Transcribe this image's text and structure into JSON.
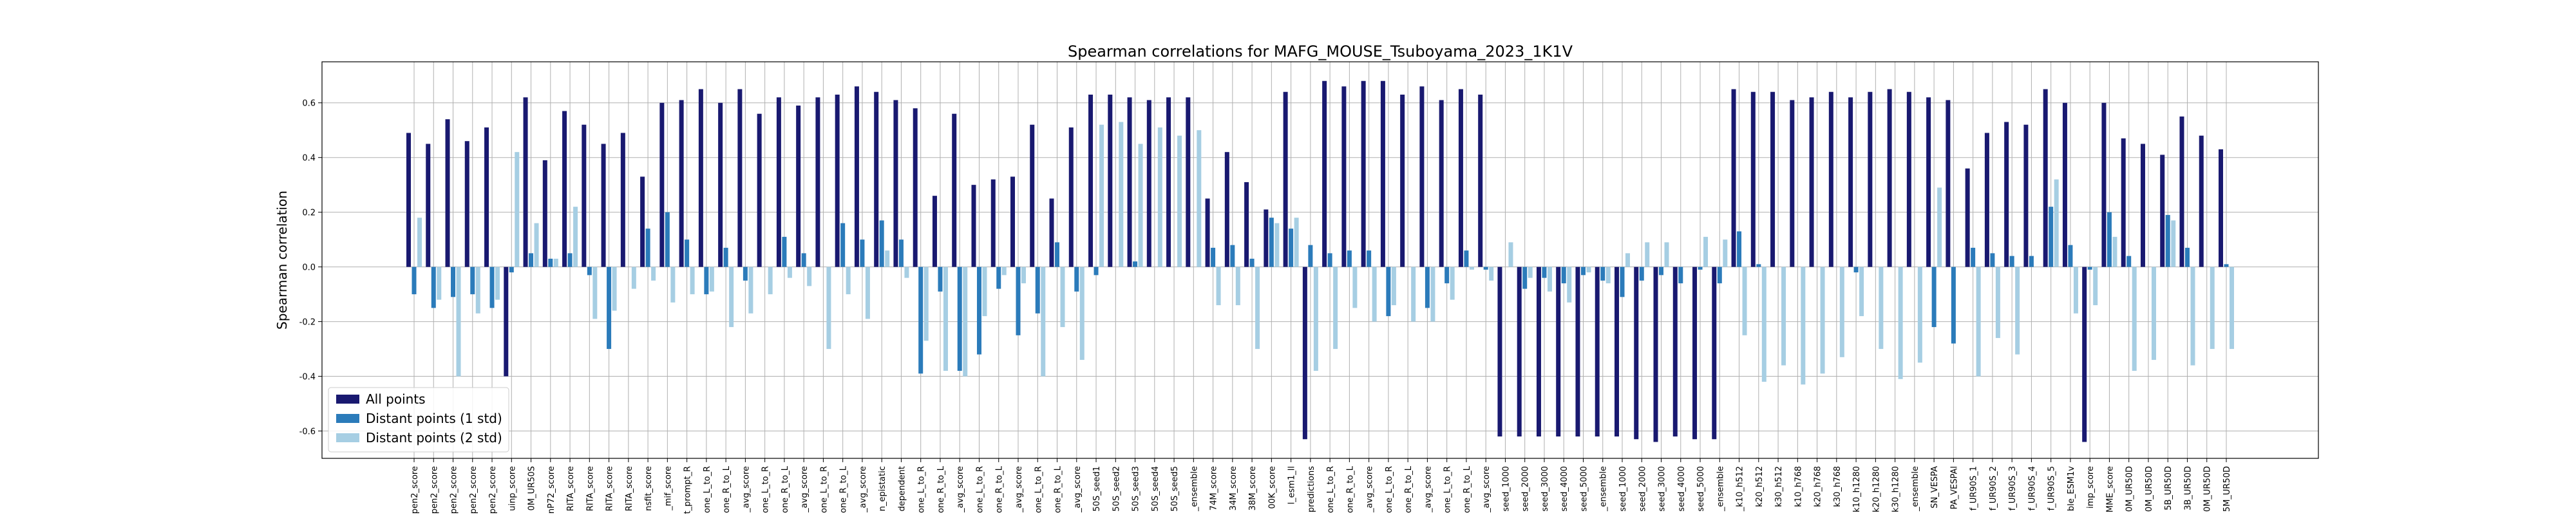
{
  "chart_data": {
    "type": "bar",
    "title": "Spearman correlations for MAFG_MOUSE_Tsuboyama_2023_1K1V",
    "ylabel": "Spearman correlation",
    "legend": "lower left",
    "grid": true,
    "ylim": [
      -0.7,
      0.75
    ],
    "yticks": [
      -0.6,
      -0.4,
      -0.2,
      {
        "value": 0,
        "label": "0.0"
      },
      0.2,
      0.4,
      0.6
    ],
    "categories": [
      "pen2_score",
      "pen2_score",
      "pen2_score",
      "pen2_score",
      "pen2_score",
      "uinp_score",
      "0M_UR50S",
      "nP72_score",
      "RITA_score",
      "RITA_score",
      "RITA_score",
      "RITA_score",
      "nsfit_score",
      "_mif_score",
      "t_prompt_R",
      "one_L_to_R",
      "one_R_to_L",
      "_avg_score",
      "one_L_to_R",
      "one_R_to_L",
      "_avg_score",
      "one_L_to_R",
      "one_R_to_L",
      "_avg_score",
      "n_epistatic",
      "dependent",
      "one_L_to_R",
      "one_R_to_L",
      "_avg_score",
      "one_L_to_R",
      "one_R_to_L",
      "_avg_score",
      "one_L_to_R",
      "one_R_to_L",
      "_avg_score",
      "50S_seed1",
      "50S_seed2",
      "50S_seed3",
      "50S_seed4",
      "50S_seed5",
      "_ensemble",
      "74M_score",
      "34M_score",
      "38M_score",
      "00K_score",
      "l_esm1_ll",
      "predictions",
      "one_L_to_R",
      "one_R_to_L",
      "_avg_score",
      "one_L_to_R",
      "one_R_to_L",
      "_avg_score",
      "one_L_to_R",
      "one_R_to_L",
      "_avg_score",
      "seed_1000",
      "seed_2000",
      "seed_3000",
      "seed_4000",
      "seed_5000",
      "_ensemble",
      "seed_1000",
      "seed_2000",
      "seed_3000",
      "seed_4000",
      "seed_5000",
      "_ensemble",
      "_k10_h512",
      "k20_h512",
      "k30_h512",
      "k10_h768",
      "k20_h768",
      "k30_h768",
      "k10_h1280",
      "k20_h1280",
      "k30_h1280",
      "_ensemble",
      "SN_VESPA",
      "PA_VESPAl",
      "f_UR90S_1",
      "f_UR90S_2",
      "f_UR90S_3",
      "f_UR90S_4",
      "f_UR90S_5",
      "ble_ESM1v",
      "imp_score",
      "MME_score",
      "0M_UR50D",
      "0M_UR50D",
      "5B_UR50D",
      "3B_UR50D",
      "0M_UR50D",
      "5M_UR50D"
    ],
    "series": [
      {
        "name": "All points",
        "color": "#191970",
        "values": [
          0.49,
          0.45,
          0.54,
          0.46,
          0.51,
          -0.4,
          0.62,
          0.39,
          0.57,
          0.52,
          0.45,
          0.49,
          0.33,
          0.6,
          0.61,
          0.65,
          0.6,
          0.65,
          0.56,
          0.62,
          0.59,
          0.62,
          0.63,
          0.66,
          0.64,
          0.61,
          0.58,
          0.26,
          0.56,
          0.3,
          0.32,
          0.33,
          0.52,
          0.25,
          0.51,
          0.63,
          0.63,
          0.62,
          0.61,
          0.62,
          0.62,
          0.25,
          0.42,
          0.31,
          0.21,
          0.64,
          -0.63,
          0.68,
          0.66,
          0.68,
          0.68,
          0.63,
          0.66,
          0.61,
          0.65,
          0.63,
          -0.62,
          -0.62,
          -0.62,
          -0.62,
          -0.62,
          -0.62,
          -0.62,
          -0.63,
          -0.64,
          -0.62,
          -0.63,
          -0.63,
          0.65,
          0.64,
          0.64,
          0.61,
          0.62,
          0.64,
          0.62,
          0.64,
          0.65,
          0.64,
          0.62,
          0.61,
          0.36,
          0.49,
          0.53,
          0.52,
          0.65,
          0.6,
          -0.64,
          0.6,
          0.47,
          0.45,
          0.41,
          0.55,
          0.48,
          0.43
        ]
      },
      {
        "name": "Distant points (1 std)",
        "color": "#2b7bba",
        "values": [
          -0.1,
          -0.15,
          -0.11,
          -0.1,
          -0.15,
          -0.02,
          0.05,
          0.03,
          0.05,
          -0.03,
          -0.3,
          0.0,
          0.14,
          0.2,
          0.1,
          -0.1,
          0.07,
          -0.05,
          0.0,
          0.11,
          0.05,
          0.0,
          0.16,
          0.1,
          0.17,
          0.1,
          -0.39,
          -0.09,
          -0.38,
          -0.32,
          -0.08,
          -0.25,
          -0.17,
          0.09,
          -0.09,
          -0.03,
          0.0,
          0.02,
          0.0,
          0.0,
          0.0,
          0.07,
          0.08,
          0.03,
          0.18,
          0.14,
          0.08,
          0.05,
          0.06,
          0.06,
          -0.18,
          0.0,
          -0.15,
          -0.06,
          0.06,
          -0.01,
          0.0,
          -0.08,
          -0.04,
          -0.06,
          -0.03,
          -0.05,
          -0.11,
          -0.05,
          -0.03,
          -0.06,
          -0.01,
          -0.06,
          0.13,
          0.01,
          0.0,
          0.0,
          0.0,
          0.0,
          -0.02,
          0.0,
          0.0,
          0.0,
          -0.22,
          -0.28,
          0.07,
          0.05,
          0.04,
          0.04,
          0.22,
          0.08,
          -0.01,
          0.2,
          0.04,
          0.0,
          0.19,
          0.07,
          0.0,
          0.01
        ]
      },
      {
        "name": "Distant points (2 std)",
        "color": "#a6cee3",
        "values": [
          0.18,
          -0.12,
          -0.4,
          -0.17,
          -0.12,
          0.42,
          0.16,
          0.03,
          0.22,
          -0.19,
          -0.16,
          -0.08,
          -0.05,
          -0.13,
          -0.1,
          -0.09,
          -0.22,
          -0.17,
          -0.1,
          -0.04,
          -0.07,
          -0.3,
          -0.1,
          -0.19,
          0.06,
          -0.04,
          -0.27,
          -0.38,
          -0.4,
          -0.18,
          -0.03,
          -0.06,
          -0.4,
          -0.22,
          -0.34,
          0.52,
          0.53,
          0.45,
          0.51,
          0.48,
          0.5,
          -0.14,
          -0.14,
          -0.3,
          0.16,
          0.18,
          -0.38,
          -0.3,
          -0.15,
          -0.2,
          -0.14,
          -0.2,
          -0.2,
          -0.12,
          -0.01,
          -0.05,
          0.09,
          -0.04,
          -0.09,
          -0.13,
          -0.02,
          -0.06,
          0.05,
          0.09,
          0.09,
          0.0,
          0.11,
          0.1,
          -0.25,
          -0.42,
          -0.36,
          -0.43,
          -0.39,
          -0.33,
          -0.18,
          -0.3,
          -0.41,
          -0.35,
          0.29,
          0.0,
          -0.4,
          -0.26,
          -0.32,
          0.0,
          0.32,
          -0.17,
          -0.14,
          0.11,
          -0.38,
          -0.34,
          0.17,
          -0.36,
          -0.3,
          -0.3
        ]
      }
    ]
  }
}
